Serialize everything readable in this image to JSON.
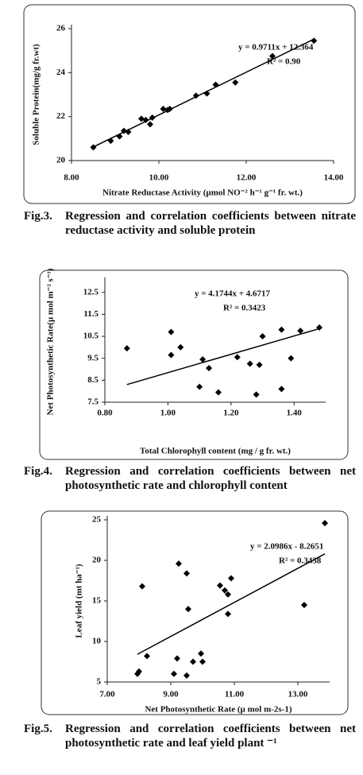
{
  "chart_data": [
    {
      "type": "scatter",
      "xlabel": "Nitrate Reductase Activity (µmol NO⁻² h⁻¹ g⁻¹ fr. wt.)",
      "ylabel": "Soluble Protein(mg/g fr.wt)",
      "annotations": [
        "y = 0.9711x + 12.364",
        "R² = 0.90"
      ],
      "trendline": {
        "slope": 0.9711,
        "intercept": 12.364
      },
      "x": [
        8.5,
        8.9,
        9.1,
        9.2,
        9.3,
        9.6,
        9.7,
        9.8,
        9.85,
        10.1,
        10.2,
        10.25,
        10.85,
        11.1,
        11.3,
        11.75,
        12.6,
        13.55
      ],
      "values": [
        20.6,
        20.9,
        21.1,
        21.35,
        21.3,
        21.9,
        21.85,
        21.65,
        21.95,
        22.35,
        22.3,
        22.35,
        22.95,
        23.05,
        23.45,
        23.55,
        24.75,
        25.45
      ],
      "color": "#000000",
      "xlim": [
        8,
        14
      ],
      "xticks": [
        {
          "value": 8,
          "label": "8.00"
        },
        {
          "value": 10,
          "label": "10.00"
        },
        {
          "value": 12,
          "label": "12.00"
        },
        {
          "value": 14,
          "label": "14.00"
        }
      ],
      "ylim": [
        20,
        26
      ],
      "yticks": [
        20,
        22,
        24,
        26
      ]
    },
    {
      "type": "scatter",
      "xlabel": "Total Chlorophyll content (mg / g fr. wt.)",
      "ylabel": "Net Photosynthetic Rate(µ mol m⁻² s⁻¹)",
      "annotations": [
        "y = 4.1744x + 4.6717",
        "R² = 0.3423"
      ],
      "trendline": {
        "slope": 4.1744,
        "intercept": 4.6717
      },
      "x": [
        0.87,
        1.01,
        1.01,
        1.04,
        1.1,
        1.11,
        1.13,
        1.16,
        1.22,
        1.26,
        1.28,
        1.29,
        1.3,
        1.36,
        1.36,
        1.39,
        1.42,
        1.48
      ],
      "values": [
        9.95,
        10.7,
        9.65,
        10.0,
        8.2,
        9.45,
        9.05,
        7.95,
        9.55,
        9.25,
        7.85,
        9.2,
        10.5,
        10.8,
        8.1,
        9.5,
        10.75,
        10.9
      ],
      "color": "#000000",
      "xlim": [
        0.8,
        1.5
      ],
      "xticks": [
        {
          "value": 0.8,
          "label": "0.80"
        },
        {
          "value": 1.0,
          "label": "1.00"
        },
        {
          "value": 1.2,
          "label": "1.20"
        },
        {
          "value": 1.4,
          "label": "1.40"
        }
      ],
      "ylim": [
        7.5,
        13
      ],
      "yticks": [
        7.5,
        8.5,
        9.5,
        10.5,
        11.5,
        12.5
      ]
    },
    {
      "type": "scatter",
      "xlabel": "Net Photosynthetic Rate (µ mol m-2s-1)",
      "ylabel": "Leaf yield (mt ha⁻¹)",
      "annotations": [
        "y = 2.0986x - 8.2651",
        "R² = 0.3438"
      ],
      "trendline": {
        "slope": 2.0986,
        "intercept": -8.2651
      },
      "x": [
        7.95,
        8.0,
        8.1,
        8.25,
        9.1,
        9.2,
        9.25,
        9.5,
        9.55,
        9.5,
        9.7,
        9.95,
        10.0,
        10.55,
        10.7,
        10.8,
        10.8,
        10.9,
        13.2,
        13.85
      ],
      "values": [
        6.0,
        6.3,
        16.8,
        8.2,
        6.0,
        7.9,
        19.6,
        18.4,
        14.0,
        5.8,
        7.5,
        8.5,
        7.5,
        16.9,
        16.3,
        15.8,
        13.4,
        17.8,
        14.5,
        24.6
      ],
      "color": "#000000",
      "xlim": [
        7,
        14
      ],
      "xticks": [
        {
          "value": 7,
          "label": "7.00"
        },
        {
          "value": 9,
          "label": "9.00"
        },
        {
          "value": 11,
          "label": "11.00"
        },
        {
          "value": 13,
          "label": "13.00"
        }
      ],
      "ylim": [
        5,
        25
      ],
      "yticks": [
        5,
        10,
        15,
        20,
        25
      ]
    }
  ],
  "captions": [
    {
      "label": "Fig.3.",
      "text": "Regression and correlation coefficients between nitrate reductase activity and soluble protein"
    },
    {
      "label": "Fig.4.",
      "text": "Regression and correlation coefficients between net photosynthetic rate and chlorophyll content"
    },
    {
      "label": "Fig.5.",
      "text": "Regression and correlation coefficients between net photosynthetic rate and leaf yield plant ⁻¹"
    }
  ]
}
